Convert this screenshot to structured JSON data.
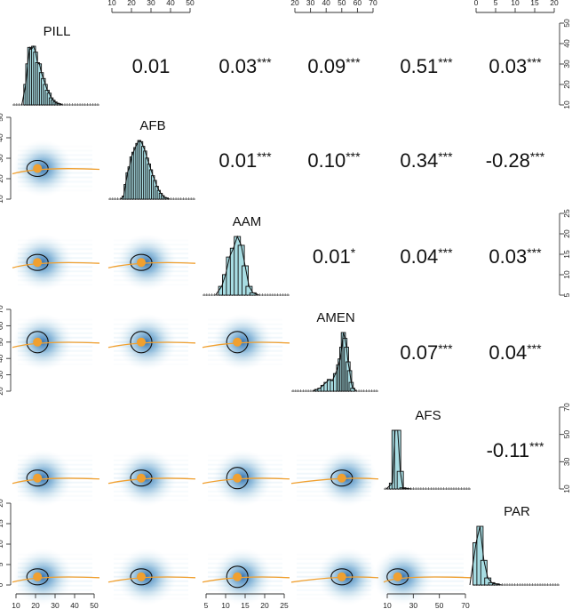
{
  "chart_data": {
    "type": "scatter-matrix",
    "title": "",
    "variables": [
      "PILL",
      "AFB",
      "AAM",
      "AMEN",
      "AFS",
      "PAR"
    ],
    "axis_ranges": {
      "PILL": [
        10,
        50
      ],
      "AFB": [
        10,
        50
      ],
      "AAM": [
        5,
        25
      ],
      "AMEN": [
        20,
        70
      ],
      "AFS": [
        10,
        70
      ],
      "PAR": [
        0,
        20
      ]
    },
    "axis_ticks": {
      "PILL": [
        "10",
        "20",
        "30",
        "40",
        "50"
      ],
      "AFB": [
        "10",
        "20",
        "30",
        "40",
        "50"
      ],
      "AAM": [
        "5",
        "10",
        "15",
        "20",
        "25"
      ],
      "AMEN": [
        "20",
        "30",
        "40",
        "50",
        "60",
        "70"
      ],
      "AFS": [
        "10",
        "30",
        "50",
        "70"
      ],
      "PAR": [
        "0",
        "5",
        "10",
        "15",
        "20"
      ]
    },
    "axis_placement": {
      "top": [
        "AFB",
        "AMEN",
        "PAR"
      ],
      "bottom": [
        "PILL",
        "AAM",
        "AFS"
      ],
      "left": [
        "AFB",
        "AMEN",
        "PAR"
      ],
      "right": [
        "PILL",
        "AAM",
        "AFS"
      ]
    },
    "correlations": [
      {
        "row": "PILL",
        "col": "AFB",
        "value": "0.01",
        "stars": ""
      },
      {
        "row": "PILL",
        "col": "AAM",
        "value": "0.03",
        "stars": "***"
      },
      {
        "row": "PILL",
        "col": "AMEN",
        "value": "0.09",
        "stars": "***"
      },
      {
        "row": "PILL",
        "col": "AFS",
        "value": "0.51",
        "stars": "***"
      },
      {
        "row": "PILL",
        "col": "PAR",
        "value": "0.03",
        "stars": "***"
      },
      {
        "row": "AFB",
        "col": "AAM",
        "value": "0.01",
        "stars": "***"
      },
      {
        "row": "AFB",
        "col": "AMEN",
        "value": "0.10",
        "stars": "***"
      },
      {
        "row": "AFB",
        "col": "AFS",
        "value": "0.34",
        "stars": "***"
      },
      {
        "row": "AFB",
        "col": "PAR",
        "value": "-0.28",
        "stars": "***"
      },
      {
        "row": "AAM",
        "col": "AMEN",
        "value": "0.01",
        "stars": "*"
      },
      {
        "row": "AAM",
        "col": "AFS",
        "value": "0.04",
        "stars": "***"
      },
      {
        "row": "AAM",
        "col": "PAR",
        "value": "0.03",
        "stars": "***"
      },
      {
        "row": "AMEN",
        "col": "AFS",
        "value": "0.07",
        "stars": "***"
      },
      {
        "row": "AMEN",
        "col": "PAR",
        "value": "0.04",
        "stars": "***"
      },
      {
        "row": "AFS",
        "col": "PAR",
        "value": "-0.11",
        "stars": "***"
      }
    ],
    "means": {
      "PILL": 21,
      "AFB": 25,
      "AAM": 13,
      "AMEN": 50,
      "AFS": 18,
      "PAR": 2
    },
    "histograms": {
      "PILL": {
        "bins": [
          15,
          16,
          17,
          18,
          19,
          20,
          21,
          22,
          23,
          24,
          25,
          26,
          27,
          28,
          29,
          30,
          31,
          32
        ],
        "heights": [
          0.35,
          0.7,
          0.98,
          0.95,
          1.0,
          0.9,
          0.72,
          0.7,
          0.55,
          0.45,
          0.35,
          0.25,
          0.2,
          0.12,
          0.08,
          0.05,
          0.03,
          0.02
        ]
      },
      "AFB": {
        "bins": [
          16,
          17,
          18,
          19,
          20,
          21,
          22,
          23,
          24,
          25,
          26,
          27,
          28,
          29,
          30,
          31,
          32,
          33,
          34,
          35,
          36,
          37,
          38
        ],
        "heights": [
          0.05,
          0.25,
          0.45,
          0.55,
          0.72,
          0.8,
          0.88,
          0.95,
          1.0,
          0.98,
          0.9,
          0.82,
          0.7,
          0.6,
          0.5,
          0.4,
          0.32,
          0.22,
          0.15,
          0.1,
          0.06,
          0.03,
          0.02
        ]
      },
      "AAM": {
        "bins": [
          9,
          10,
          11,
          12,
          13,
          14,
          15,
          16,
          17
        ],
        "heights": [
          0.15,
          0.35,
          0.65,
          0.8,
          1.0,
          0.85,
          0.5,
          0.15,
          0.04
        ]
      },
      "AMEN": {
        "bins": [
          34,
          36,
          38,
          40,
          42,
          44,
          46,
          48,
          49,
          50,
          51,
          52,
          53,
          54,
          55,
          56,
          57
        ],
        "heights": [
          0.03,
          0.05,
          0.1,
          0.15,
          0.2,
          0.18,
          0.3,
          0.45,
          0.55,
          0.75,
          1.0,
          0.9,
          0.75,
          0.5,
          0.35,
          0.15,
          0.05
        ]
      },
      "AFS": {
        "bins": [
          14,
          16,
          18,
          20,
          22,
          24
        ],
        "heights": [
          0.1,
          1.0,
          1.0,
          0.3,
          0.02,
          0.01
        ]
      },
      "PAR": {
        "bins": [
          0,
          1,
          2,
          3,
          4,
          5
        ],
        "heights": [
          0.72,
          1.0,
          0.42,
          0.12,
          0.04,
          0.02
        ]
      }
    },
    "colors": {
      "histogram_fill": "#a8dde3",
      "histogram_stroke": "#111111",
      "density_dark": "#08519c",
      "density_light": "#deebf7",
      "loess_line": "#f0a030",
      "mean_point": "#f0a030",
      "ellipse_stroke": "#111111"
    }
  }
}
